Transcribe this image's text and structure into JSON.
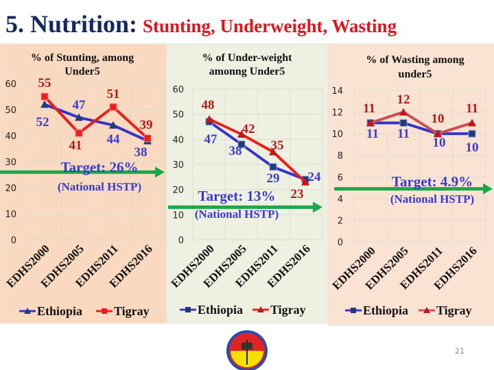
{
  "slide": {
    "title_main": "5. Nutrition:",
    "title_sub": "Stunting, Underweight, Wasting",
    "page_number": "21",
    "logo": "Tigray regional emblem (red/yellow circular seal)"
  },
  "colors": {
    "ethiopia": "#3535c8",
    "tigray": "#e8201c",
    "target_arrow": "#1aa84a",
    "label_ethiopia": "#3c3cc8",
    "label_tigray": "#b01c14"
  },
  "chart_data": [
    {
      "type": "line",
      "title": "% of Stunting, among Under5",
      "title_lines": [
        "% of Stunting, among",
        "Under5"
      ],
      "categories": [
        "EDHS2000",
        "EDHS2005",
        "EDHS2011",
        "EDHS2016"
      ],
      "series": [
        {
          "name": "Ethiopia",
          "values": [
            52,
            47,
            44,
            38
          ],
          "marker": "triangle"
        },
        {
          "name": "Tigray",
          "values": [
            55,
            41,
            51,
            39
          ],
          "marker": "square"
        }
      ],
      "ylim": [
        0,
        60
      ],
      "yticks": [
        0,
        10,
        20,
        30,
        40,
        50,
        60
      ],
      "target": {
        "value": 26,
        "label": "Target: 26%",
        "sublabel": "(National HSTP)"
      },
      "grid": true,
      "legend": "bottom",
      "background": "#f9d9bf"
    },
    {
      "type": "line",
      "title": "% of Under-weight amonng Under5",
      "title_lines": [
        "% of Under-weight",
        "amonng Under5"
      ],
      "categories": [
        "EDHS2000",
        "EDHS2005",
        "EDHS2011",
        "EDHS2016"
      ],
      "series": [
        {
          "name": "Ethiopia",
          "values": [
            47,
            38,
            29,
            24
          ],
          "marker": "square"
        },
        {
          "name": "Tigray",
          "values": [
            48,
            42,
            35,
            23
          ],
          "marker": "triangle"
        }
      ],
      "ylim": [
        0,
        60
      ],
      "yticks": [
        0,
        10,
        20,
        30,
        40,
        50,
        60
      ],
      "target": {
        "value": 13,
        "label": "Target: 13%",
        "sublabel": "(National HSTP)"
      },
      "grid": true,
      "legend": "bottom",
      "background": "#eef0e2"
    },
    {
      "type": "line",
      "title": "% of Wasting among under5",
      "title_lines": [
        "% of Wasting among",
        "under5"
      ],
      "categories": [
        "EDHS2000",
        "EDHS2005",
        "EDHS2011",
        "EDHS2016"
      ],
      "series": [
        {
          "name": "Ethiopia",
          "values": [
            11,
            11,
            10,
            10
          ],
          "marker": "square"
        },
        {
          "name": "Tigray",
          "values": [
            11,
            12,
            10,
            11
          ],
          "marker": "triangle"
        }
      ],
      "ylim": [
        0,
        14
      ],
      "yticks": [
        0,
        2,
        4,
        6,
        8,
        10,
        12,
        14
      ],
      "target": {
        "value": 4.9,
        "label": "Target: 4.9%",
        "sublabel": "(National HSTP)"
      },
      "grid": true,
      "legend": "bottom",
      "background": "#fbe3d3"
    }
  ]
}
